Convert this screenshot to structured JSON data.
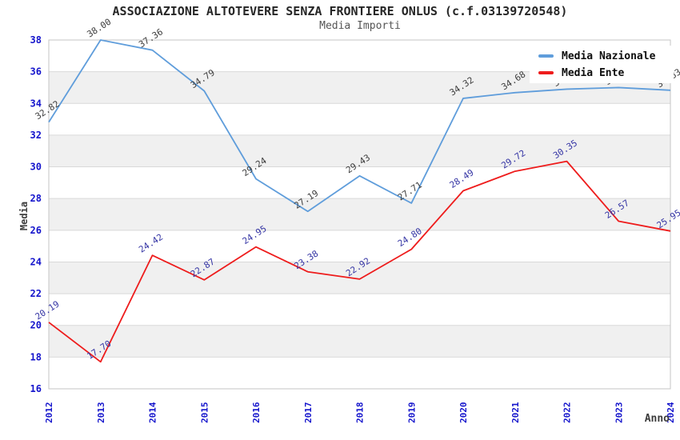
{
  "chart_data": {
    "type": "line",
    "title": "ASSOCIAZIONE ALTOTEVERE SENZA FRONTIERE ONLUS (c.f.03139720548)",
    "subtitle": "Media Importi",
    "xlabel": "Anno",
    "ylabel": "Media",
    "ylim": [
      16,
      38
    ],
    "ytick_step": 2,
    "grid": true,
    "band_fill": "#f0f0f0",
    "gridline_color": "#d9d9d9",
    "border_color": "#c6c6c6",
    "tick_label_color": "#1414cc",
    "legend_position": "top-right",
    "categories": [
      "2012",
      "2013",
      "2014",
      "2015",
      "2016",
      "2017",
      "2018",
      "2019",
      "2020",
      "2021",
      "2022",
      "2023",
      "2024"
    ],
    "series": [
      {
        "name": "Media Nazionale",
        "color": "#5f9ddb",
        "label_color": "#3c3c3c",
        "values": [
          32.82,
          38.0,
          37.36,
          34.79,
          29.24,
          27.19,
          29.43,
          27.71,
          34.32,
          34.68,
          34.9,
          35.0,
          34.83
        ],
        "labels_hidden_behind_legend": [
          "2022",
          "2023"
        ]
      },
      {
        "name": "Media Ente",
        "color": "#ee1c1c",
        "label_color": "#3434a4",
        "values": [
          20.19,
          17.7,
          24.42,
          22.87,
          24.95,
          23.38,
          22.92,
          24.8,
          28.49,
          29.72,
          30.35,
          26.57,
          25.95
        ]
      }
    ]
  }
}
